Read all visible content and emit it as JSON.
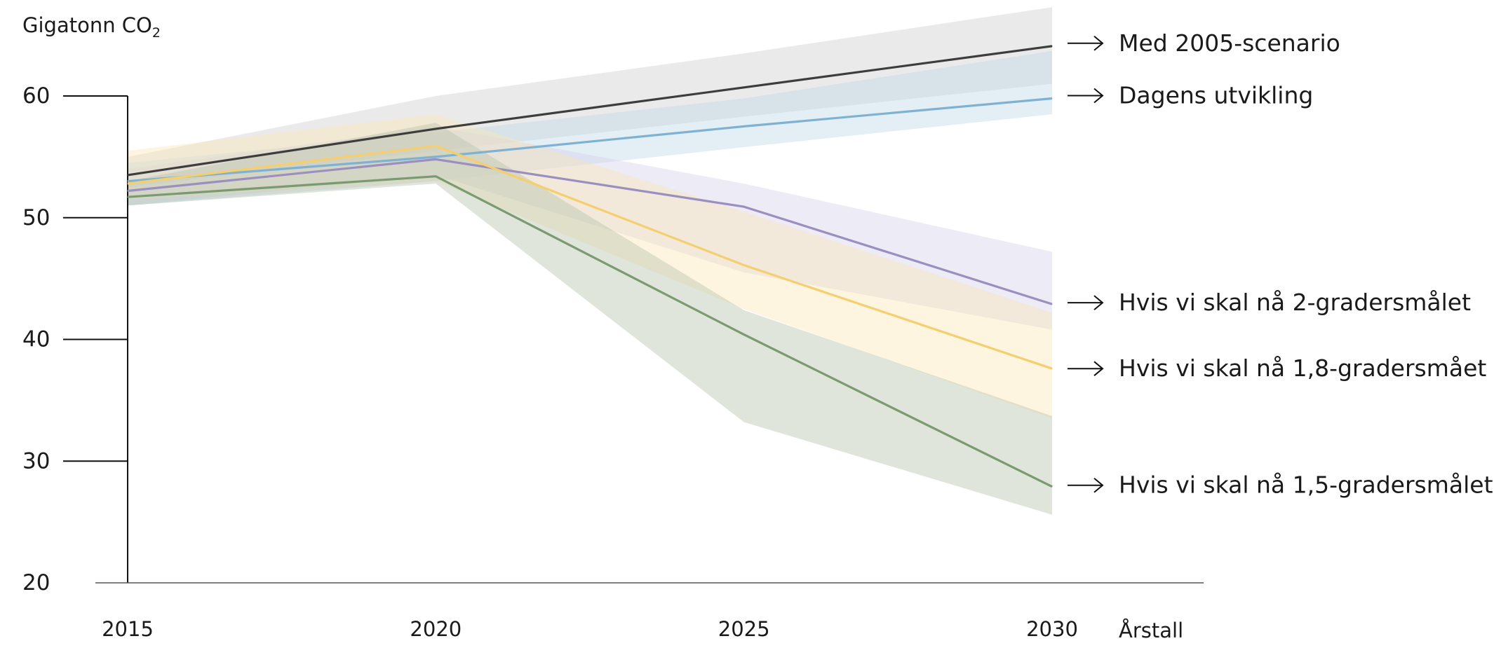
{
  "chart_data": {
    "type": "line",
    "ylabel": "Gigatonn CO",
    "ylabel_sub": "2",
    "xlabel": "Årstall",
    "x": [
      2015,
      2020,
      2025,
      2030
    ],
    "x_ticks": [
      "2015",
      "2020",
      "2025",
      "2030"
    ],
    "y_ticks": [
      "60",
      "50",
      "40",
      "30",
      "20"
    ],
    "ylim": [
      20,
      60
    ],
    "grid": false,
    "legend": "right, arrow labels at line ends",
    "series": [
      {
        "name": "Med 2005-scenario",
        "color": "#3d3d3d",
        "band_color": "#cccccc",
        "values": [
          53.5,
          57.3,
          60.7,
          64.1
        ],
        "upper": [
          55.0,
          60.0,
          63.5,
          67.3
        ],
        "lower": [
          52.5,
          55.5,
          58.3,
          61.0
        ]
      },
      {
        "name": "Dagens utvikling",
        "color": "#7fb2d2",
        "band_color": "#bcd7e8",
        "values": [
          53.0,
          55.0,
          57.5,
          59.8
        ],
        "upper": [
          54.5,
          57.0,
          59.8,
          63.7
        ],
        "lower": [
          51.0,
          53.0,
          55.8,
          58.5
        ]
      },
      {
        "name": "Hvis vi skal nå 2-gradersmålet",
        "color": "#9a8fbf",
        "band_color": "#d5d0ea",
        "values": [
          52.2,
          54.8,
          50.9,
          42.9
        ],
        "upper": [
          54.0,
          57.5,
          52.8,
          47.2
        ],
        "lower": [
          51.0,
          53.5,
          45.5,
          40.8
        ]
      },
      {
        "name": "Hvis vi skal nå 1,8-gradersmået",
        "color": "#f5cf6e",
        "band_color": "#fbe6b5",
        "values": [
          52.8,
          55.9,
          46.1,
          37.6
        ],
        "upper": [
          55.5,
          58.5,
          50.5,
          42.2
        ],
        "lower": [
          51.5,
          53.0,
          42.5,
          33.5
        ]
      },
      {
        "name": "Hvis vi skal nå 1,5-gradersmålet",
        "color": "#7a9a70",
        "band_color": "#b4c2ab",
        "values": [
          51.7,
          53.4,
          40.4,
          27.9
        ],
        "upper": [
          53.0,
          57.8,
          42.4,
          33.7
        ],
        "lower": [
          51.0,
          52.8,
          33.2,
          25.6
        ]
      }
    ]
  }
}
